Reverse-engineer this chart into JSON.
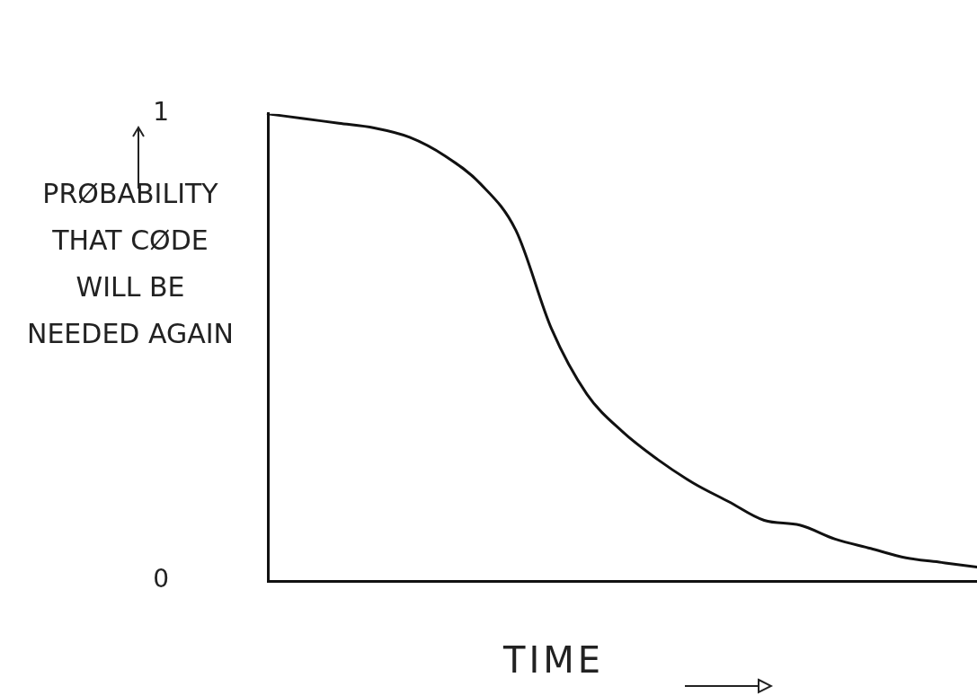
{
  "chart_data": {
    "type": "line",
    "xlabel": "TIME",
    "ylabel": "PRØBABILITY THAT CØDE WILL BE NEEDED AGAIN",
    "categories": [
      null,
      null,
      null,
      null,
      null,
      null,
      null,
      null,
      null,
      null,
      null,
      null,
      null,
      null,
      null,
      null,
      null,
      null,
      null,
      null,
      null
    ],
    "series": [
      {
        "color": "#111111",
        "values": [
          1.0,
          0.99,
          0.98,
          0.97,
          0.95,
          0.91,
          0.85,
          0.75,
          0.54,
          0.4,
          0.32,
          0.26,
          0.21,
          0.17,
          0.13,
          0.12,
          0.09,
          0.07,
          0.05,
          0.04,
          0.03
        ]
      }
    ],
    "ylim": [
      0,
      1
    ],
    "yticks": [
      0,
      1
    ],
    "grid": false,
    "legend": false,
    "tick_labels": "y",
    "marker": "none",
    "line_style": "solid"
  }
}
